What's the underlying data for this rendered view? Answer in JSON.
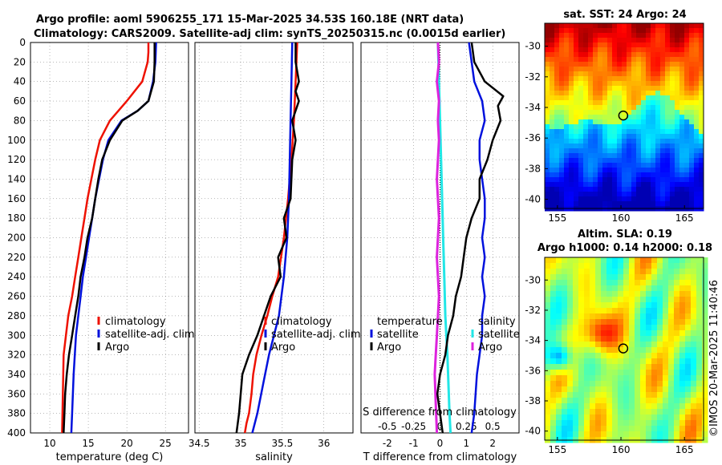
{
  "header": {
    "title_line1": "Argo profile: aoml 5906255_171 15-Mar-2025 34.53S 160.18E (NRT data)",
    "title_line2": "Climatology: CARS2009. Satellite-adj clim: synTS_20250315.nc (0.0015d earlier)"
  },
  "legend_profiles": {
    "climatology": "climatology",
    "satellite": "satellite-adj. clim",
    "argo": "Argo"
  },
  "legend_diff": {
    "temp_header": "temperature",
    "sal_header": "salinity",
    "satellite": "satellite",
    "argo": "Argo"
  },
  "diff_top_label": "S difference from climatology",
  "maps": {
    "sst_title": "sat. SST: 24 Argo: 24",
    "sla_title1": "Altim. SLA: 0.19",
    "sla_title2": "Argo h1000: 0.14 h2000: 0.18",
    "lat_ticks": [
      "-30",
      "-32",
      "-34",
      "-36",
      "-38",
      "-40"
    ],
    "lon_ticks": [
      "155",
      "160",
      "165"
    ]
  },
  "watermark": "©IMOS 20-Mar-2025 11:40:46",
  "colors": {
    "climatology": "#ee1100",
    "satellite": "#0011dd",
    "argo": "#000000",
    "sal_satellite": "#22e6e6",
    "sal_argo": "#dd22dd"
  },
  "chart_data": [
    {
      "type": "line",
      "title": "",
      "xlabel": "temperature (deg C)",
      "ylabel": "",
      "xlim": [
        7.5,
        28
      ],
      "ylim": [
        400,
        0
      ],
      "xticks": [
        "10",
        "15",
        "20",
        "25"
      ],
      "yticks": [
        "0",
        "20",
        "40",
        "60",
        "80",
        "100",
        "120",
        "140",
        "160",
        "180",
        "200",
        "220",
        "240",
        "260",
        "280",
        "300",
        "320",
        "340",
        "360",
        "380",
        "400"
      ],
      "series": [
        {
          "name": "climatology",
          "x": [
            22.8,
            22.8,
            22.7,
            22.0,
            20.0,
            17.8,
            16.5,
            15.9,
            15.4,
            14.9,
            14.5,
            14.1,
            13.7,
            13.3,
            12.9,
            12.4,
            12.1,
            11.8,
            11.6
          ],
          "y": [
            0,
            10,
            20,
            40,
            60,
            80,
            100,
            120,
            140,
            160,
            180,
            200,
            220,
            240,
            260,
            280,
            300,
            320,
            400
          ]
        },
        {
          "name": "satellite-adj. clim",
          "x": [
            23.8,
            23.7,
            23.4,
            22.8,
            21.4,
            19.3,
            17.6,
            16.9,
            16.4,
            15.9,
            15.5,
            15.1,
            14.7,
            14.3,
            14.0,
            13.7,
            13.4,
            13.1,
            12.9,
            12.8
          ],
          "y": [
            0,
            20,
            40,
            60,
            70,
            80,
            100,
            120,
            140,
            160,
            180,
            200,
            220,
            240,
            260,
            280,
            300,
            340,
            380,
            400
          ]
        },
        {
          "name": "Argo",
          "x": [
            23.6,
            23.6,
            23.5,
            22.8,
            21.4,
            19.4,
            17.8,
            16.8,
            16.3,
            15.9,
            15.5,
            14.9,
            14.5,
            14.0,
            13.7,
            13.3,
            12.9,
            12.5,
            12.2,
            12.0,
            11.9,
            11.8
          ],
          "y": [
            0,
            20,
            40,
            60,
            70,
            80,
            100,
            120,
            140,
            160,
            180,
            200,
            220,
            240,
            260,
            280,
            300,
            320,
            340,
            360,
            380,
            400
          ]
        }
      ]
    },
    {
      "type": "line",
      "title": "",
      "xlabel": "salinity",
      "ylabel": "",
      "xlim": [
        34.45,
        36.35
      ],
      "ylim": [
        400,
        0
      ],
      "xticks": [
        "34.5",
        "35",
        "35.5",
        "36"
      ],
      "series": [
        {
          "name": "climatology",
          "x": [
            35.68,
            35.66,
            35.64,
            35.61,
            35.57,
            35.52,
            35.45,
            35.38,
            35.32,
            35.25,
            35.19,
            35.15,
            35.13,
            35.1,
            35.07,
            35.05
          ],
          "y": [
            0,
            40,
            80,
            120,
            160,
            200,
            240,
            260,
            280,
            300,
            320,
            340,
            360,
            380,
            390,
            400
          ]
        },
        {
          "name": "satellite-adj. clim",
          "x": [
            35.62,
            35.61,
            35.6,
            35.59,
            35.58,
            35.56,
            35.52,
            35.46,
            35.4,
            35.34,
            35.27,
            35.2,
            35.14
          ],
          "y": [
            0,
            40,
            80,
            120,
            160,
            200,
            240,
            280,
            300,
            320,
            350,
            380,
            400
          ]
        },
        {
          "name": "Argo",
          "x": [
            35.66,
            35.66,
            35.7,
            35.66,
            35.7,
            35.62,
            35.66,
            35.62,
            35.6,
            35.52,
            35.55,
            35.45,
            35.48,
            35.36,
            35.28,
            35.2,
            35.1,
            35.02,
            34.98,
            34.95
          ],
          "y": [
            0,
            20,
            40,
            50,
            60,
            80,
            100,
            120,
            160,
            180,
            200,
            220,
            240,
            260,
            280,
            300,
            320,
            340,
            380,
            400
          ]
        }
      ]
    },
    {
      "type": "line",
      "title": "",
      "xlabel": "T difference from climatology",
      "ylabel": "",
      "xlim": [
        -3,
        3
      ],
      "ylim": [
        400,
        0
      ],
      "xticks": [
        "-2",
        "-1",
        "0",
        "1",
        "2"
      ],
      "secondary_xlabel": "S difference from climatology",
      "secondary_xlim": [
        -0.75,
        0.75
      ],
      "secondary_xticks": [
        "-0.5",
        "-0.25",
        "0",
        "0.25",
        "0.5"
      ],
      "series": [
        {
          "name": "temperature satellite",
          "x": [
            1.1,
            1.2,
            1.3,
            1.6,
            1.7,
            1.5,
            1.5,
            1.6,
            1.7,
            1.7,
            1.6,
            1.7,
            1.6,
            1.7,
            1.6,
            1.6,
            1.5,
            1.4,
            1.3,
            1.2
          ],
          "y": [
            0,
            20,
            40,
            60,
            80,
            100,
            120,
            140,
            160,
            180,
            200,
            220,
            240,
            260,
            280,
            300,
            320,
            340,
            380,
            400
          ]
        },
        {
          "name": "temperature Argo",
          "x": [
            1.2,
            1.3,
            1.7,
            2.4,
            2.2,
            2.3,
            2.0,
            1.8,
            1.5,
            1.5,
            1.2,
            1.0,
            0.9,
            0.8,
            0.6,
            0.5,
            0.3,
            0.2,
            0.0,
            -0.1,
            0.0,
            0.1
          ],
          "y": [
            0,
            20,
            40,
            55,
            65,
            80,
            100,
            120,
            140,
            160,
            180,
            200,
            220,
            240,
            260,
            280,
            300,
            320,
            340,
            360,
            380,
            400
          ]
        },
        {
          "name": "salinity satellite",
          "x": [
            -0.02,
            -0.01,
            0.0,
            0.01,
            0.02,
            0.03,
            0.04,
            0.05,
            0.06,
            0.07,
            0.08,
            0.09,
            0.1
          ],
          "y": [
            0,
            40,
            80,
            120,
            160,
            200,
            240,
            280,
            300,
            320,
            350,
            380,
            400
          ]
        },
        {
          "name": "salinity Argo",
          "x": [
            -0.02,
            -0.01,
            -0.03,
            -0.01,
            -0.02,
            -0.01,
            -0.02,
            -0.03,
            -0.02,
            -0.01,
            -0.02,
            -0.03,
            -0.02,
            -0.01,
            -0.02,
            -0.03,
            -0.04,
            -0.05,
            -0.04,
            -0.03
          ],
          "y": [
            0,
            20,
            40,
            60,
            80,
            100,
            120,
            140,
            160,
            180,
            200,
            220,
            240,
            260,
            280,
            300,
            320,
            340,
            370,
            400
          ]
        }
      ]
    }
  ]
}
